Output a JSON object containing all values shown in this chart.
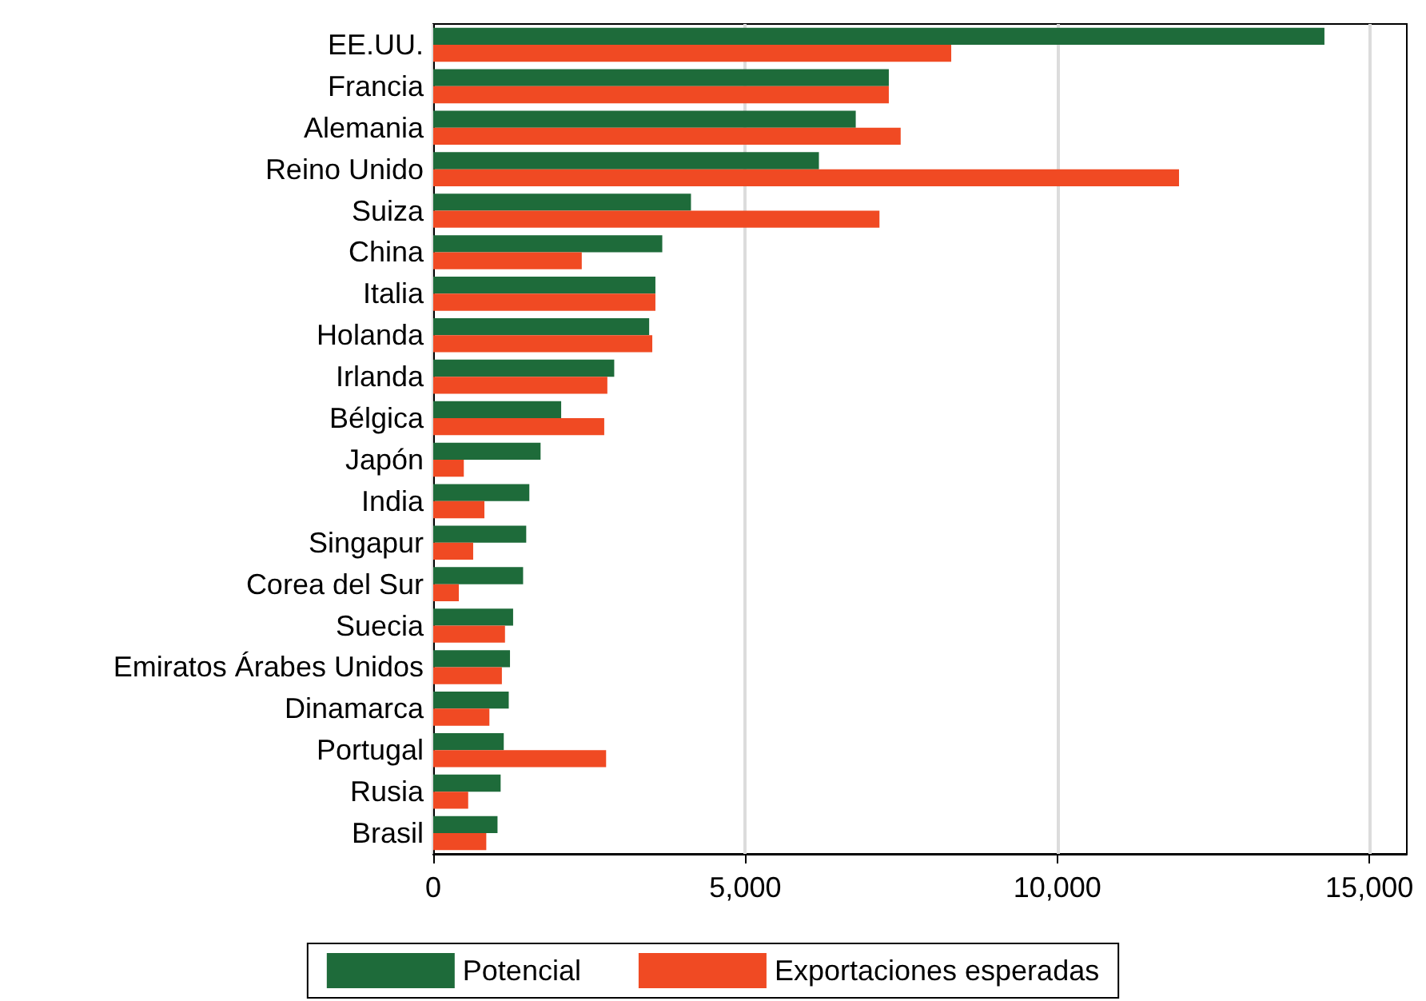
{
  "chart_data": {
    "type": "bar",
    "orientation": "horizontal",
    "categories": [
      "EE.UU.",
      "Francia",
      "Alemania",
      "Reino Unido",
      "Suiza",
      "China",
      "Italia",
      "Holanda",
      "Irlanda",
      "Bélgica",
      "Japón",
      "India",
      "Singapur",
      "Corea del Sur",
      "Suecia",
      "Emiratos Árabes Unidos",
      "Dinamarca",
      "Portugal",
      "Rusia",
      "Brasil"
    ],
    "series": [
      {
        "name": "Potencial",
        "color": "#1e6b3a",
        "values": [
          14280,
          7300,
          6770,
          6180,
          4130,
          3670,
          3560,
          3460,
          2900,
          2050,
          1720,
          1540,
          1490,
          1440,
          1280,
          1230,
          1210,
          1130,
          1080,
          1030
        ]
      },
      {
        "name": "Exportaciones esperadas",
        "color": "#f04a23",
        "values": [
          8300,
          7300,
          7490,
          11950,
          7150,
          2380,
          3560,
          3510,
          2790,
          2740,
          490,
          820,
          640,
          410,
          1150,
          1100,
          900,
          2770,
          560,
          850
        ]
      }
    ],
    "xlim": [
      0,
      15600
    ],
    "xticks": [
      0,
      {
        "value": 5000,
        "label": "5,000"
      },
      {
        "value": 10000,
        "label": "10,000"
      },
      {
        "value": 15000,
        "label": "15,000"
      }
    ],
    "grid": "x",
    "legend": "bottom"
  }
}
